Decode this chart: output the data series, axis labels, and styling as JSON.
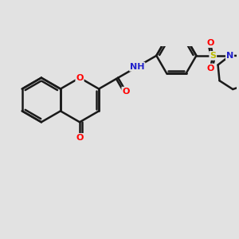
{
  "background_color": "#e2e2e2",
  "bond_color": "#1a1a1a",
  "bond_width": 1.8,
  "atom_colors": {
    "O": "#ff0000",
    "N": "#2222cc",
    "S": "#bbbb00",
    "C": "#1a1a1a",
    "H": "#555555"
  },
  "font_size": 8.0,
  "figsize": [
    3.0,
    3.0
  ],
  "dpi": 100,
  "xlim": [
    -3.5,
    5.5
  ],
  "ylim": [
    -3.2,
    2.4
  ]
}
